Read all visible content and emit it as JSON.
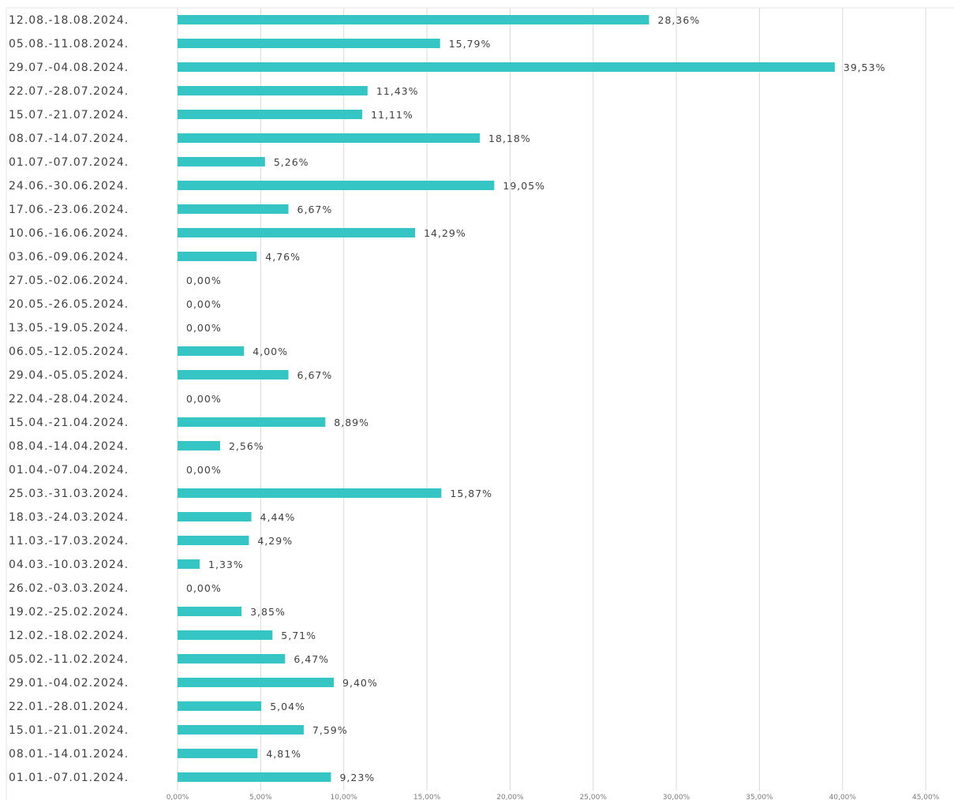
{
  "chart_data": {
    "type": "bar",
    "orientation": "horizontal",
    "title": "",
    "xlabel": "",
    "ylabel": "",
    "xlim": [
      0,
      55
    ],
    "grid": true,
    "bar_color": "#36c5c5",
    "x_ticks": [
      "0,00%",
      "5,00%",
      "10,00%",
      "15,00%",
      "20,00%",
      "25,00%",
      "30,00%",
      "35,00%",
      "40,00%",
      "45,00%"
    ],
    "categories": [
      "12.08.-18.08.2024.",
      "05.08.-11.08.2024.",
      "29.07.-04.08.2024.",
      "22.07.-28.07.2024.",
      "15.07.-21.07.2024.",
      "08.07.-14.07.2024.",
      "01.07.-07.07.2024.",
      "24.06.-30.06.2024.",
      "17.06.-23.06.2024.",
      "10.06.-16.06.2024.",
      "03.06.-09.06.2024.",
      "27.05.-02.06.2024.",
      "20.05.-26.05.2024.",
      "13.05.-19.05.2024.",
      "06.05.-12.05.2024.",
      "29.04.-05.05.2024.",
      "22.04.-28.04.2024.",
      "15.04.-21.04.2024.",
      "08.04.-14.04.2024.",
      "01.04.-07.04.2024.",
      "25.03.-31.03.2024.",
      "18.03.-24.03.2024.",
      "11.03.-17.03.2024.",
      "04.03.-10.03.2024.",
      "26.02.-03.03.2024.",
      "19.02.-25.02.2024.",
      "12.02.-18.02.2024.",
      "05.02.-11.02.2024.",
      "29.01.-04.02.2024.",
      "22.01.-28.01.2024.",
      "15.01.-21.01.2024.",
      "08.01.-14.01.2024.",
      "01.01.-07.01.2024."
    ],
    "values": [
      28.36,
      15.79,
      39.53,
      11.43,
      11.11,
      18.18,
      5.26,
      19.05,
      6.67,
      14.29,
      4.76,
      0.0,
      0.0,
      0.0,
      4.0,
      6.67,
      0.0,
      8.89,
      2.56,
      0.0,
      15.87,
      4.44,
      4.29,
      1.33,
      0.0,
      3.85,
      5.71,
      6.47,
      9.4,
      5.04,
      7.59,
      4.81,
      9.23
    ],
    "value_labels": [
      "28,36%",
      "15,79%",
      "39,53%",
      "11,43%",
      "11,11%",
      "18,18%",
      "5,26%",
      "19,05%",
      "6,67%",
      "14,29%",
      "4,76%",
      "0,00%",
      "0,00%",
      "0,00%",
      "4,00%",
      "6,67%",
      "0,00%",
      "8,89%",
      "2,56%",
      "0,00%",
      "15,87%",
      "4,44%",
      "4,29%",
      "1,33%",
      "0,00%",
      "3,85%",
      "5,71%",
      "6,47%",
      "9,40%",
      "5,04%",
      "7,59%",
      "4,81%",
      "9,23%"
    ]
  }
}
